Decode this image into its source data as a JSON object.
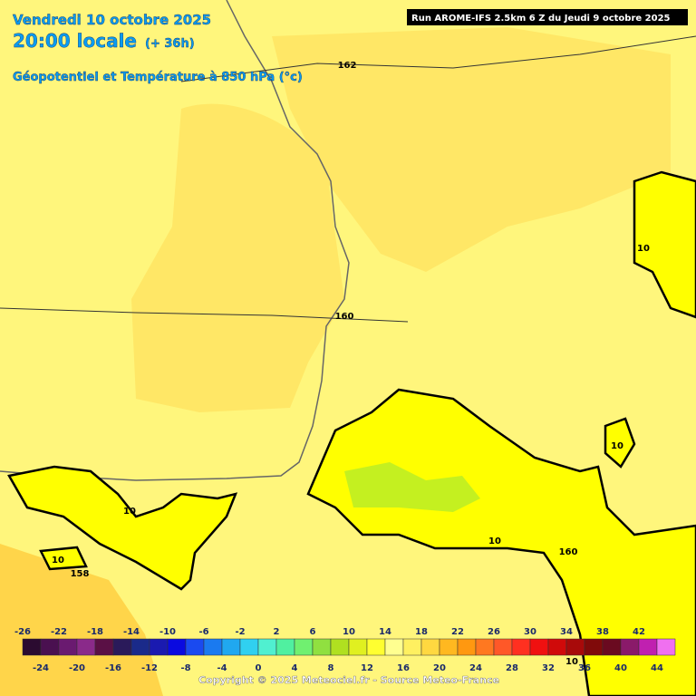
{
  "header": {
    "date": "Vendredi 10 octobre 2025",
    "time": "20:00 locale",
    "lead": "(+ 36h)",
    "parameter": "Géopotentiel et Température à 850 hPa (°c)",
    "run": "Run AROME-IFS 2.5km 6 Z du Jeudi 9 octobre 2025"
  },
  "contour_labels": [
    "162",
    "160",
    "158",
    "160",
    "10",
    "10",
    "10",
    "10",
    "10",
    "10"
  ],
  "legend": {
    "upper_ticks": [
      -26,
      -22,
      -18,
      -14,
      -10,
      -6,
      -2,
      2,
      6,
      10,
      14,
      18,
      22,
      26,
      30,
      34,
      38,
      42
    ],
    "lower_ticks": [
      -24,
      -20,
      -16,
      -12,
      -8,
      -4,
      0,
      4,
      8,
      12,
      16,
      20,
      24,
      28,
      32,
      36,
      40,
      44
    ],
    "colors": [
      "#2b0b30",
      "#4a1050",
      "#6a1a70",
      "#8a2a8a",
      "#5a1045",
      "#2a1a5a",
      "#1a2a8a",
      "#1a1ab0",
      "#0a0ae0",
      "#1a4af0",
      "#1a7af0",
      "#20a8f0",
      "#30d0f0",
      "#50f0d0",
      "#50f0a0",
      "#70f070",
      "#90e040",
      "#b0e020",
      "#e0f020",
      "#ffff30",
      "#ffff90",
      "#fff060",
      "#ffd840",
      "#ffb820",
      "#ff9810",
      "#ff7820",
      "#ff5828",
      "#ff3020",
      "#f01010",
      "#d00a0a",
      "#a80a0a",
      "#800a0a",
      "#6a0a20",
      "#8a1a6a",
      "#c020b0",
      "#f070f0"
    ]
  },
  "footer": "Copyright © 2025 Meteociel.fr - Source Meteo-France"
}
